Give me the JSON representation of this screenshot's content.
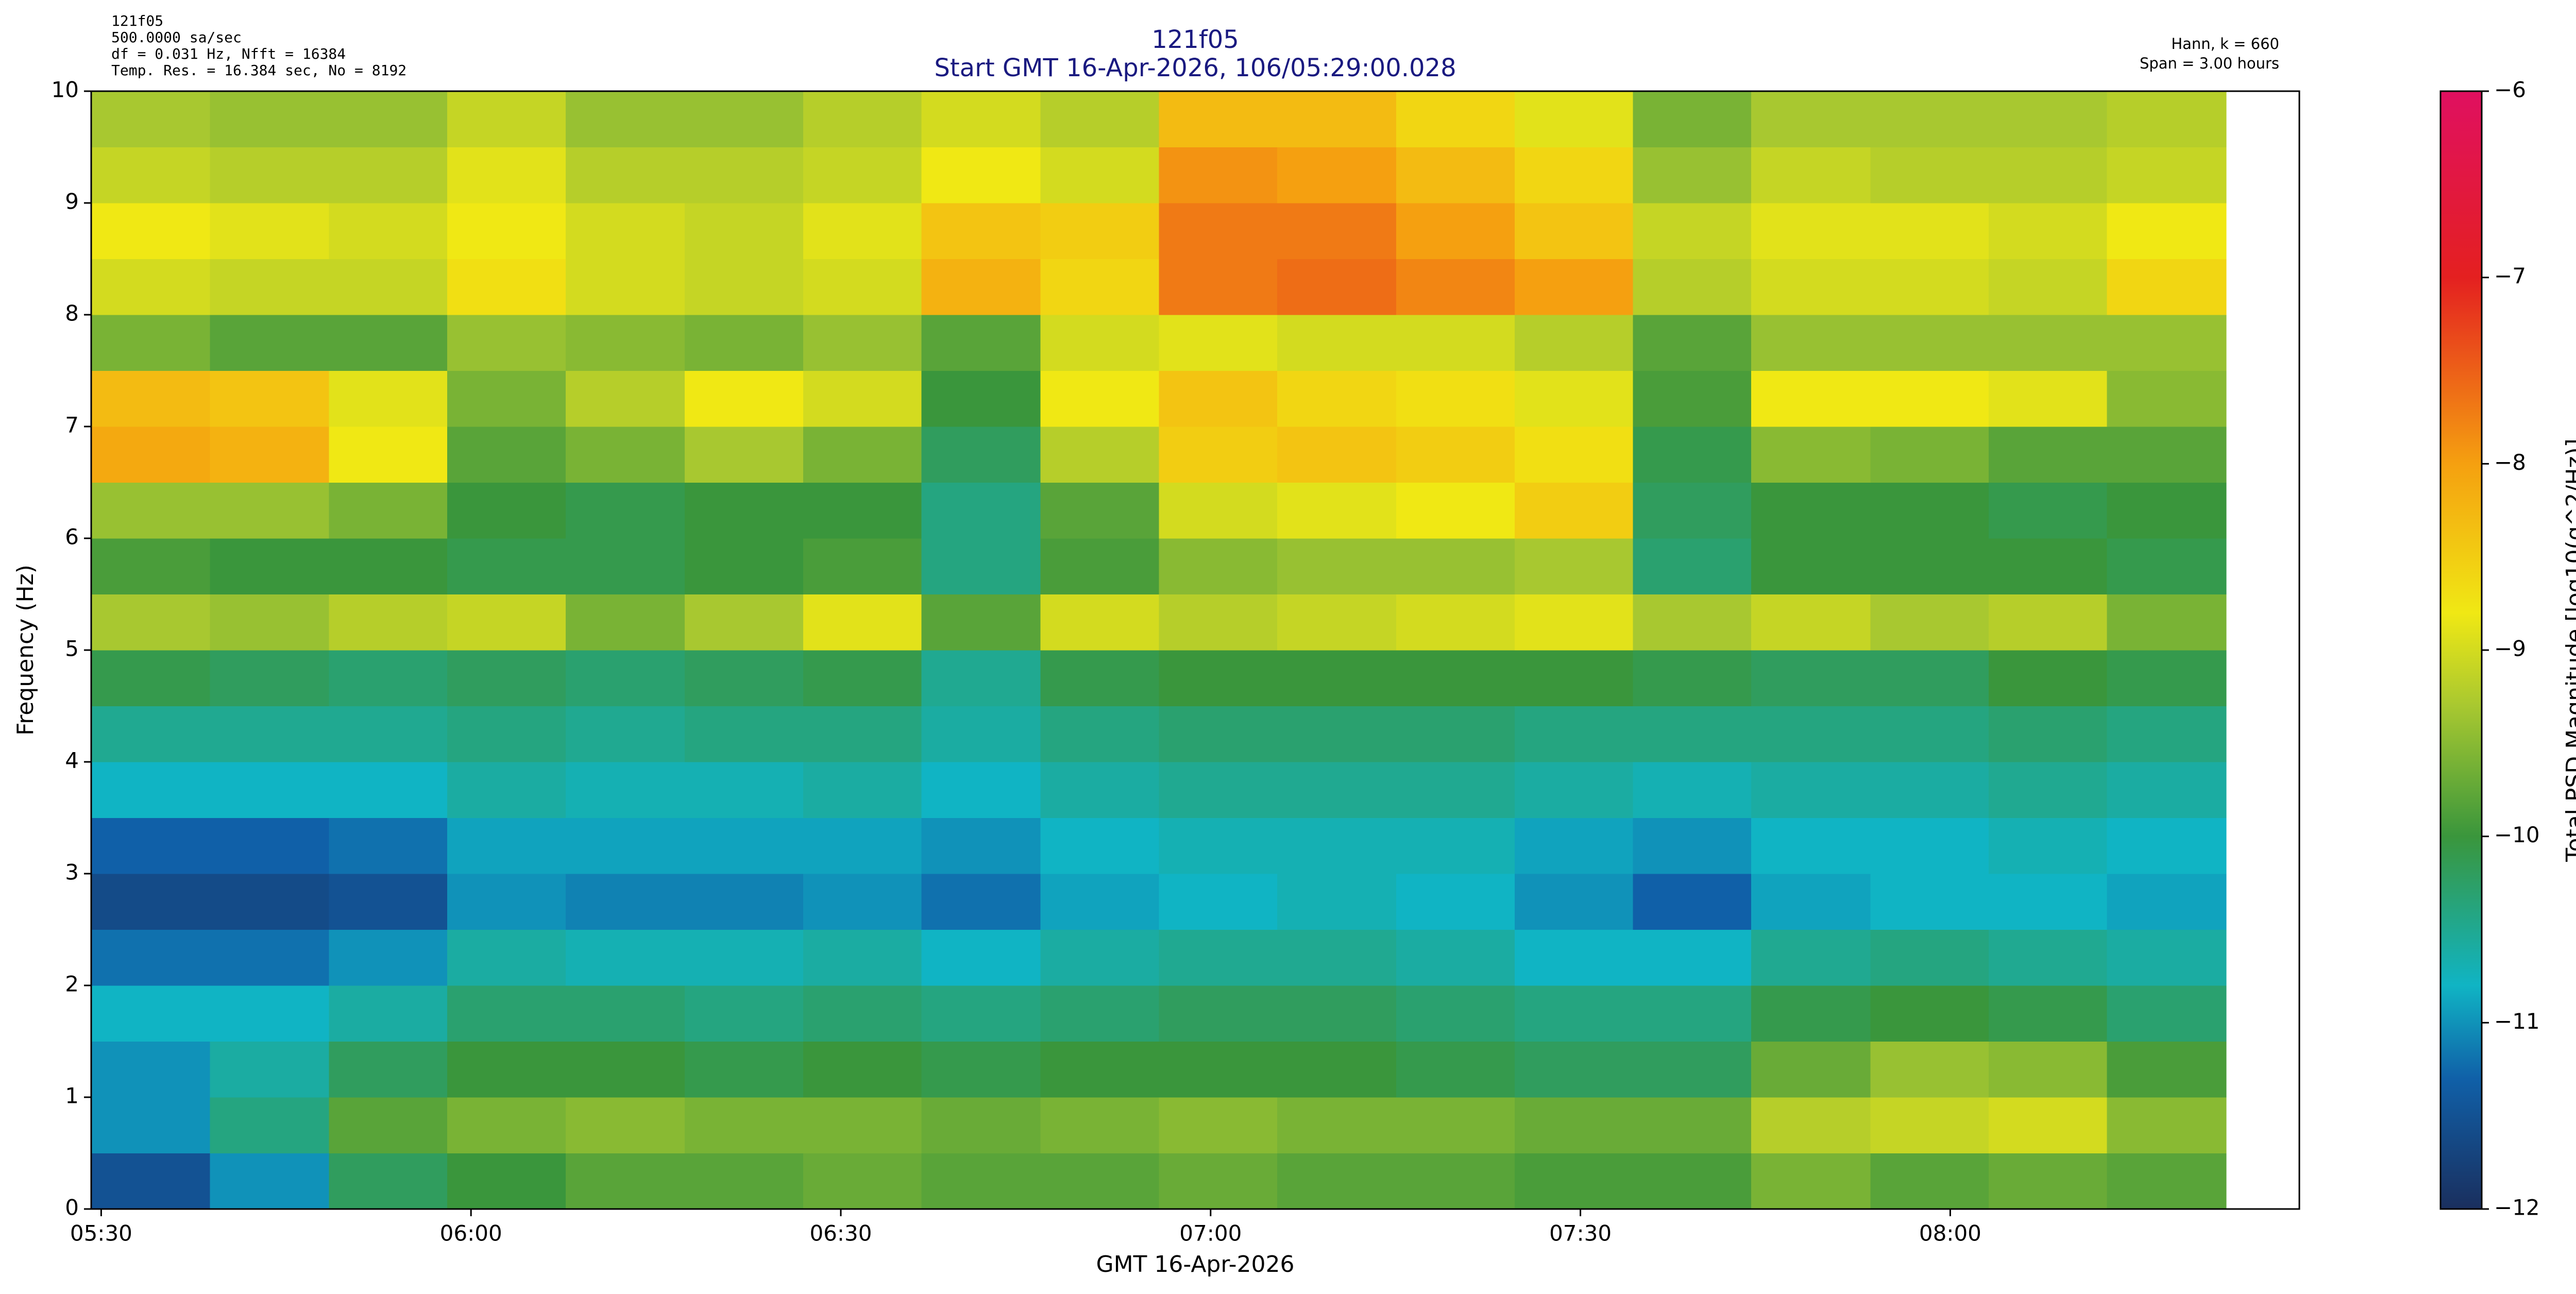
{
  "chart_data": {
    "type": "heatmap",
    "title": "121f05",
    "subtitle": "Start GMT 16-Apr-2026, 106/05:29:00.028",
    "info_left": [
      "121f05",
      "500.0000 sa/sec",
      "df = 0.031 Hz,  Nfft = 16384",
      "Temp. Res. = 16.384 sec, No = 8192"
    ],
    "info_right": [
      "Hann, k = 660",
      "Span = 3.00 hours"
    ],
    "xlabel": "GMT 16-Apr-2026",
    "ylabel": "Frequency (Hz)",
    "colorbar_label": "Total PSD Magnitude [log10(g^2/Hz)]",
    "xlim": [
      5.4865,
      8.472
    ],
    "xticks": [
      {
        "value": 5.5,
        "label": "05:30"
      },
      {
        "value": 6,
        "label": "06:00"
      },
      {
        "value": 6.5,
        "label": "06:30"
      },
      {
        "value": 7,
        "label": "07:00"
      },
      {
        "value": 7.5,
        "label": "07:30"
      },
      {
        "value": 8,
        "label": "08:00"
      }
    ],
    "ylim": [
      0,
      10
    ],
    "yticks": [
      0,
      1,
      2,
      3,
      4,
      5,
      6,
      7,
      8,
      9,
      10
    ],
    "clim": [
      -12,
      -6
    ],
    "cticks": [
      {
        "value": -12,
        "label": "−12"
      },
      {
        "value": -11,
        "label": "−11"
      },
      {
        "value": -10,
        "label": "−10"
      },
      {
        "value": -9,
        "label": "−9"
      },
      {
        "value": -8,
        "label": "−8"
      },
      {
        "value": -7,
        "label": "−7"
      },
      {
        "value": -6,
        "label": "−6"
      }
    ],
    "colorscale": [
      [
        -12,
        "#1a2f5e"
      ],
      [
        -11.3,
        "#1060a8"
      ],
      [
        -10.8,
        "#10b4c4"
      ],
      [
        -10,
        "#3a963c"
      ],
      [
        -9.3,
        "#a8c830"
      ],
      [
        -8.8,
        "#f0e814"
      ],
      [
        -8,
        "#f5a010"
      ],
      [
        -7,
        "#e42020"
      ],
      [
        -6,
        "#e01060"
      ]
    ],
    "xbins": [
      5.487,
      5.647,
      5.808,
      5.968,
      6.128,
      6.289,
      6.449,
      6.609,
      6.77,
      6.93,
      7.09,
      7.251,
      7.411,
      7.571,
      7.731,
      7.892,
      8.052,
      8.212,
      8.373
    ],
    "ybins": [
      0,
      0.5,
      1,
      1.5,
      2,
      2.5,
      3,
      3.5,
      4,
      4.5,
      5,
      5.5,
      6,
      6.5,
      7,
      7.5,
      8,
      8.5,
      9,
      9.5,
      10
    ],
    "z": [
      [
        -11.5,
        -11,
        -10.2,
        -10,
        -9.8,
        -9.8,
        -9.7,
        -9.8,
        -9.8,
        -9.7,
        -9.8,
        -9.8,
        -9.9,
        -9.9,
        -9.6,
        -9.8,
        -9.7,
        -9.8
      ],
      [
        -11,
        -10.4,
        -9.8,
        -9.6,
        -9.5,
        -9.6,
        -9.6,
        -9.7,
        -9.6,
        -9.5,
        -9.6,
        -9.6,
        -9.7,
        -9.7,
        -9.2,
        -9.1,
        -9,
        -9.5
      ],
      [
        -11,
        -10.6,
        -10.2,
        -10,
        -10,
        -10.1,
        -10,
        -10.1,
        -10,
        -10,
        -10,
        -10.1,
        -10.2,
        -10.2,
        -9.7,
        -9.4,
        -9.5,
        -9.9
      ],
      [
        -10.8,
        -10.8,
        -10.6,
        -10.3,
        -10.3,
        -10.4,
        -10.3,
        -10.4,
        -10.3,
        -10.2,
        -10.2,
        -10.3,
        -10.4,
        -10.4,
        -10.1,
        -10,
        -10.1,
        -10.3
      ],
      [
        -11.2,
        -11.2,
        -11,
        -10.6,
        -10.7,
        -10.7,
        -10.6,
        -10.8,
        -10.6,
        -10.5,
        -10.5,
        -10.6,
        -10.8,
        -10.8,
        -10.5,
        -10.4,
        -10.5,
        -10.6
      ],
      [
        -11.6,
        -11.6,
        -11.5,
        -11,
        -11.1,
        -11.1,
        -11,
        -11.2,
        -10.9,
        -10.8,
        -10.7,
        -10.8,
        -11,
        -11.3,
        -10.9,
        -10.8,
        -10.8,
        -10.9
      ],
      [
        -11.3,
        -11.3,
        -11.2,
        -10.9,
        -10.9,
        -10.9,
        -10.9,
        -11,
        -10.8,
        -10.7,
        -10.7,
        -10.7,
        -10.9,
        -11,
        -10.8,
        -10.8,
        -10.7,
        -10.8
      ],
      [
        -10.8,
        -10.8,
        -10.8,
        -10.6,
        -10.7,
        -10.7,
        -10.6,
        -10.8,
        -10.6,
        -10.5,
        -10.5,
        -10.5,
        -10.6,
        -10.7,
        -10.6,
        -10.6,
        -10.5,
        -10.6
      ],
      [
        -10.5,
        -10.5,
        -10.5,
        -10.4,
        -10.5,
        -10.4,
        -10.4,
        -10.6,
        -10.4,
        -10.3,
        -10.3,
        -10.3,
        -10.4,
        -10.4,
        -10.4,
        -10.4,
        -10.3,
        -10.4
      ],
      [
        -10.1,
        -10.2,
        -10.3,
        -10.2,
        -10.3,
        -10.2,
        -10.1,
        -10.5,
        -10.1,
        -10,
        -10,
        -10,
        -10,
        -10.1,
        -10.2,
        -10.2,
        -10,
        -10.1
      ],
      [
        -9.3,
        -9.4,
        -9.2,
        -9.1,
        -9.6,
        -9.3,
        -8.9,
        -9.8,
        -9,
        -9.2,
        -9.1,
        -9,
        -8.9,
        -9.3,
        -9.1,
        -9.3,
        -9.2,
        -9.6
      ],
      [
        -9.9,
        -10,
        -10,
        -10.1,
        -10.1,
        -10,
        -9.9,
        -10.4,
        -9.9,
        -9.5,
        -9.4,
        -9.4,
        -9.3,
        -10.3,
        -10,
        -10,
        -10,
        -10.1
      ],
      [
        -9.4,
        -9.4,
        -9.6,
        -10,
        -10.1,
        -10,
        -10,
        -10.4,
        -9.8,
        -9,
        -8.9,
        -8.8,
        -8.5,
        -10.2,
        -10,
        -10,
        -10.1,
        -10
      ],
      [
        -8.1,
        -8.2,
        -8.8,
        -9.8,
        -9.6,
        -9.3,
        -9.6,
        -10.2,
        -9.2,
        -8.5,
        -8.4,
        -8.5,
        -8.7,
        -10.1,
        -9.5,
        -9.6,
        -9.8,
        -9.8
      ],
      [
        -8.3,
        -8.4,
        -8.9,
        -9.6,
        -9.2,
        -8.8,
        -9,
        -10,
        -8.8,
        -8.4,
        -8.6,
        -8.7,
        -8.9,
        -9.9,
        -8.8,
        -8.8,
        -8.9,
        -9.5
      ],
      [
        -9.6,
        -9.8,
        -9.8,
        -9.4,
        -9.5,
        -9.6,
        -9.4,
        -9.8,
        -9,
        -8.9,
        -9,
        -9,
        -9.2,
        -9.8,
        -9.4,
        -9.4,
        -9.4,
        -9.4
      ],
      [
        -9,
        -9.1,
        -9.1,
        -8.7,
        -9,
        -9.1,
        -9,
        -8.2,
        -8.6,
        -7.7,
        -7.6,
        -7.8,
        -8,
        -9.2,
        -9,
        -9,
        -9.1,
        -8.6
      ],
      [
        -8.8,
        -8.9,
        -9,
        -8.8,
        -9,
        -9.1,
        -8.9,
        -8.4,
        -8.5,
        -7.7,
        -7.7,
        -8,
        -8.4,
        -9.1,
        -8.9,
        -8.9,
        -9,
        -8.8
      ],
      [
        -9.1,
        -9.2,
        -9.2,
        -8.9,
        -9.2,
        -9.2,
        -9.1,
        -8.8,
        -9,
        -7.9,
        -8,
        -8.3,
        -8.6,
        -9.4,
        -9.1,
        -9.2,
        -9.2,
        -9.1
      ],
      [
        -9.3,
        -9.4,
        -9.4,
        -9.1,
        -9.4,
        -9.4,
        -9.2,
        -9,
        -9.2,
        -8.3,
        -8.3,
        -8.6,
        -8.9,
        -9.6,
        -9.3,
        -9.3,
        -9.3,
        -9.2
      ]
    ]
  }
}
